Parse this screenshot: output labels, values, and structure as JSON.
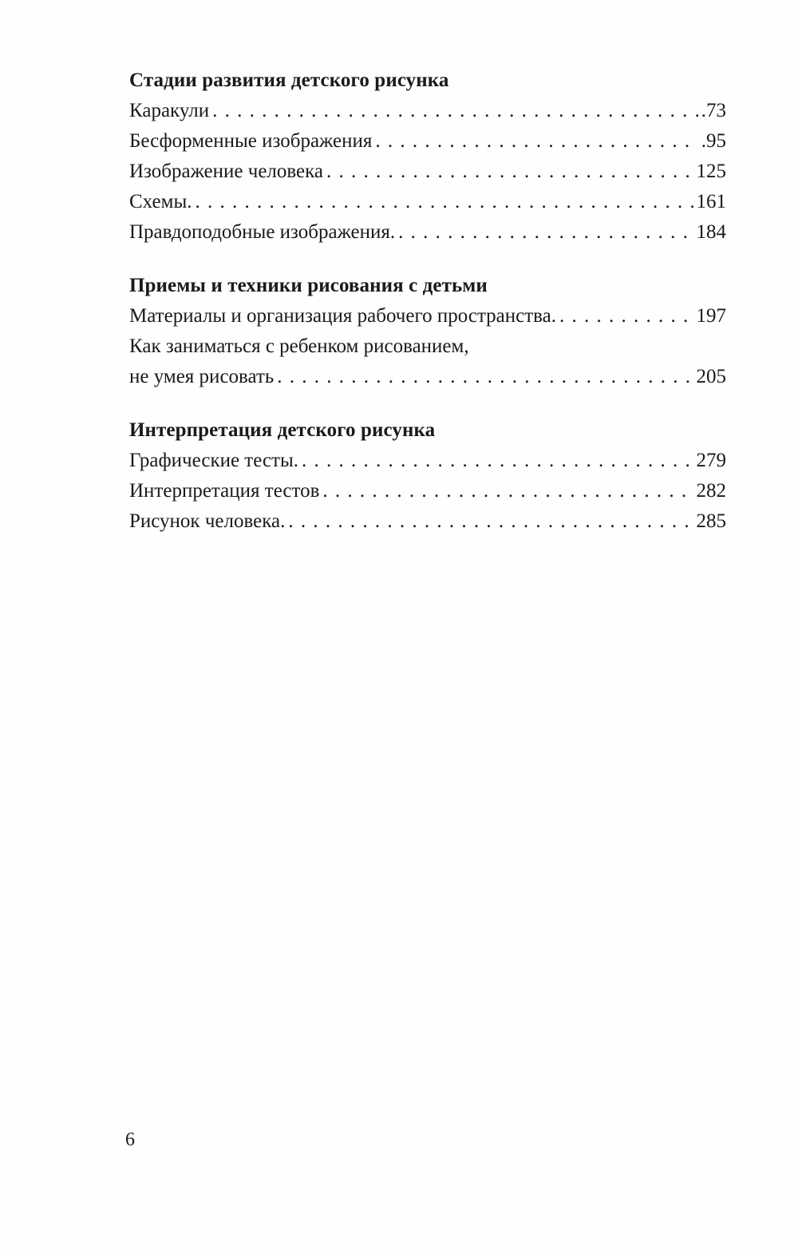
{
  "toc": {
    "sections": [
      {
        "heading": "Стадии развития детского рисунка",
        "entries": [
          {
            "title": "Каракули",
            "page": ".73"
          },
          {
            "title": "Бесформенные изображения",
            "page": ".95"
          },
          {
            "title": "Изображение человека",
            "page": "125"
          },
          {
            "title": "Схемы.",
            "page": "161"
          },
          {
            "title": "Правдоподобные изображения.",
            "page": "184"
          }
        ]
      },
      {
        "heading": "Приемы и техники рисования с детьми",
        "entries": [
          {
            "title": "Материалы и организация рабочего пространства.",
            "page": "197"
          },
          {
            "title": "Как заниматься с ребенком рисованием,",
            "title_line2": "не умея рисовать",
            "page": "205"
          }
        ]
      },
      {
        "heading": "Интерпретация детского рисунка",
        "entries": [
          {
            "title": "Графические тесты.",
            "page": "279"
          },
          {
            "title": "Интерпретация тестов",
            "page": "282"
          },
          {
            "title": "Рисунок человека.",
            "page": "285"
          }
        ]
      }
    ]
  },
  "page_number": "6"
}
